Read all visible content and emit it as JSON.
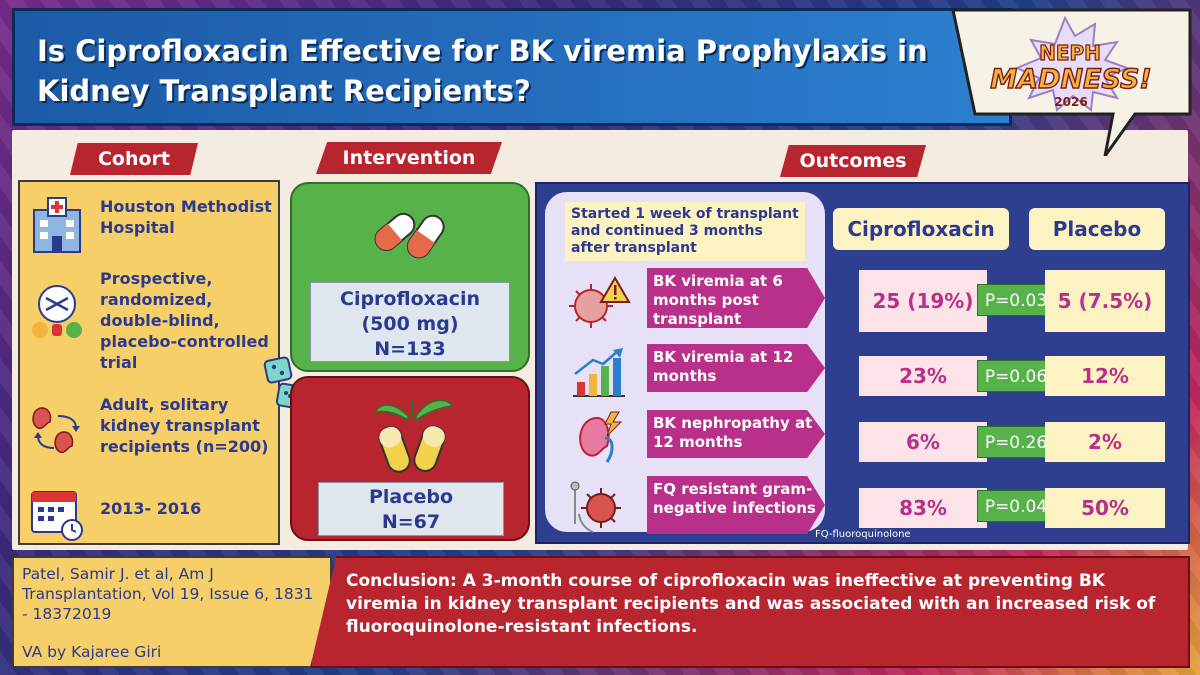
{
  "title": "Is Ciprofloxacin Effective for BK viremia Prophylaxis in Kidney Transplant Recipients?",
  "logo": {
    "line1": "NEPH",
    "line2": "MADNESS!",
    "year": "2026"
  },
  "sections": {
    "cohort": "Cohort",
    "intervention": "Intervention",
    "outcomes": "Outcomes"
  },
  "cohort": [
    {
      "icon": "hospital-icon",
      "text": "Houston Methodist Hospital"
    },
    {
      "icon": "randomization-icon",
      "text": "Prospective, randomized, double-blind, placebo-controlled trial"
    },
    {
      "icon": "kidney-transplant-icon",
      "text": "Adult, solitary kidney transplant recipients (n=200)"
    },
    {
      "icon": "calendar-icon",
      "text": "2013- 2016"
    }
  ],
  "intervention": {
    "cipro": {
      "name": "Ciprofloxacin",
      "dose": "(500 mg)",
      "n": "N=133",
      "icon": "pills-icon"
    },
    "placebo": {
      "name": "Placebo",
      "n": "N=67",
      "icon": "herbal-capsule-icon"
    }
  },
  "outcomes": {
    "timing": "Started 1 week of transplant and continued 3 months after transplant",
    "col_cipro": "Ciprofloxacin",
    "col_placebo": "Placebo",
    "rows": [
      {
        "icon": "virus-warning-icon",
        "label": "BK viremia at 6 months post transplant",
        "cipro": "25 (19%)",
        "p": "P=0.03",
        "placebo": "5 (7.5%)"
      },
      {
        "icon": "bar-chart-icon",
        "label": "BK viremia at 12 months",
        "cipro": "23%",
        "p": "P=0.06",
        "placebo": "12%"
      },
      {
        "icon": "kidney-damage-icon",
        "label": "BK nephropathy at 12 months",
        "cipro": "6%",
        "p": "P=0.26",
        "placebo": "2%"
      },
      {
        "icon": "resistant-bacteria-icon",
        "label": "FQ resistant gram-negative infections",
        "cipro": "83%",
        "p": "P=0.04",
        "placebo": "50%"
      }
    ],
    "footnote": "FQ-fluoroquinolone"
  },
  "citation": "Patel, Samir J. et al, Am J Transplantation, Vol 19, Issue 6, 1831 - 18372019",
  "byline": "VA by Kajaree Giri",
  "conclusion": "Conclusion: A 3-month course of ciprofloxacin was ineffective at preventing BK viremia in kidney transplant recipients and was associated with an increased risk of fluoroquinolone-resistant infections.",
  "colors": {
    "red": "#b8252f",
    "green": "#57b24a",
    "navy": "#2b3a8f",
    "yellow": "#f6cf68",
    "magenta": "#b83089"
  }
}
